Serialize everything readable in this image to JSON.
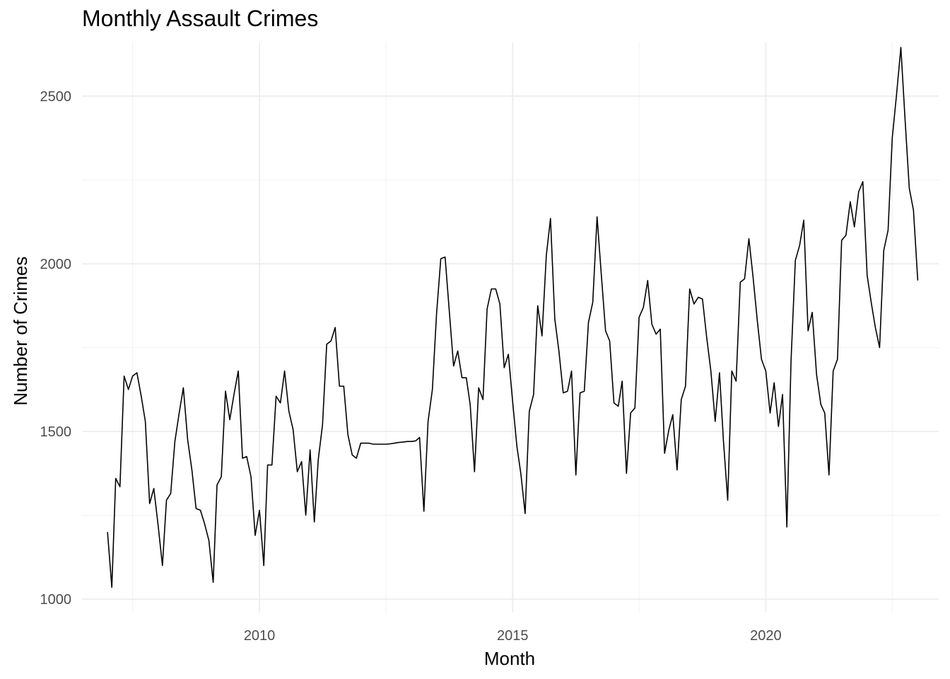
{
  "chart_data": {
    "type": "line",
    "title": "Monthly Assault Crimes",
    "xlabel": "Month",
    "ylabel": "Number of Crimes",
    "x_start": "2007-01",
    "x_end": "2022-12",
    "xlim": [
      "2006-07-01",
      "2023-06-01"
    ],
    "ylim": [
      960,
      2660
    ],
    "x_ticks": [
      {
        "date": "2010-01-01",
        "label": "2010"
      },
      {
        "date": "2015-01-01",
        "label": "2015"
      },
      {
        "date": "2020-01-01",
        "label": "2020"
      }
    ],
    "x_minor_ticks": [
      "2007-07-01",
      "2012-07-01",
      "2017-07-01",
      "2022-07-01"
    ],
    "y_ticks": [
      {
        "value": 1000,
        "label": "1000"
      },
      {
        "value": 1500,
        "label": "1500"
      },
      {
        "value": 2000,
        "label": "2000"
      },
      {
        "value": 2500,
        "label": "2500"
      }
    ],
    "y_minor_ticks": [
      1250,
      1750,
      2250
    ],
    "grid": true,
    "line_color": "#000000",
    "series": [
      {
        "x_first": "2007-01",
        "x_step": "1 month",
        "values": [
          1200,
          1035,
          1360,
          1335,
          1665,
          1625,
          1665,
          1675,
          1605,
          1530,
          1285,
          1330,
          1220,
          1100,
          1295,
          1315,
          1470,
          1555,
          1630,
          1475,
          1385,
          1270,
          1265,
          1225,
          1175,
          1050,
          1340,
          1365,
          1620,
          1535,
          1610,
          1680,
          1420,
          1425,
          1365,
          1190,
          1265,
          1100,
          1400,
          1400,
          1605,
          1585,
          1680,
          1560,
          1505,
          1380,
          1410,
          1250,
          1445,
          1230,
          1415,
          1520,
          1760,
          1770,
          1810,
          1635,
          1635,
          1490,
          1430,
          1420,
          1465,
          1465,
          1465,
          1462,
          1462,
          1462,
          1462,
          1463,
          1465,
          1467,
          1468,
          1470,
          1470,
          1472,
          1482,
          1262,
          1530,
          1625,
          1850,
          2015,
          2020,
          1860,
          1695,
          1740,
          1660,
          1660,
          1580,
          1380,
          1630,
          1595,
          1865,
          1925,
          1925,
          1880,
          1690,
          1730,
          1590,
          1455,
          1375,
          1255,
          1560,
          1610,
          1875,
          1785,
          2025,
          2135,
          1835,
          1740,
          1615,
          1620,
          1680,
          1370,
          1615,
          1620,
          1825,
          1885,
          2140,
          1970,
          1800,
          1770,
          1585,
          1575,
          1650,
          1375,
          1555,
          1570,
          1840,
          1870,
          1950,
          1820,
          1790,
          1805,
          1435,
          1505,
          1550,
          1385,
          1595,
          1635,
          1925,
          1880,
          1900,
          1895,
          1780,
          1680,
          1530,
          1675,
          1475,
          1295,
          1680,
          1650,
          1945,
          1955,
          2075,
          1960,
          1830,
          1715,
          1680,
          1555,
          1645,
          1515,
          1610,
          1215,
          1710,
          2010,
          2055,
          2130,
          1800,
          1855,
          1670,
          1580,
          1555,
          1370,
          1680,
          1715,
          2070,
          2085,
          2185,
          2110,
          2215,
          2245,
          1965,
          1880,
          1810,
          1750,
          2040,
          2100,
          2375,
          2505,
          2645,
          2435,
          2225,
          2160,
          1950
        ]
      }
    ]
  }
}
